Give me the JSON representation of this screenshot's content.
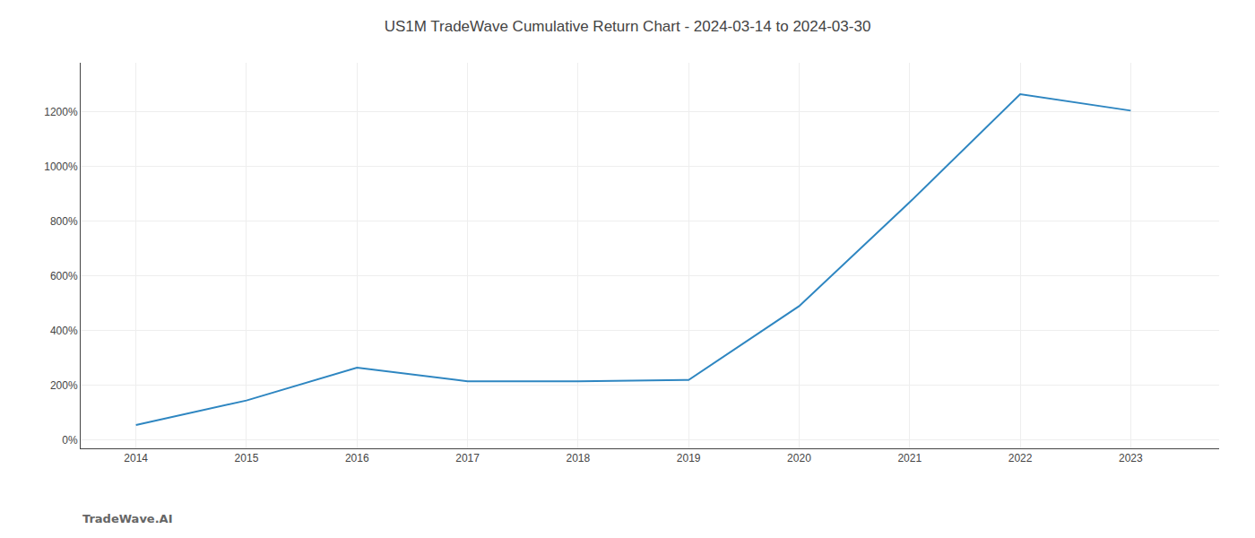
{
  "chart_data": {
    "type": "line",
    "title": "US1M TradeWave Cumulative Return Chart - 2024-03-14 to 2024-03-30",
    "annotations": [
      "TradeWave.AI"
    ],
    "x": [
      2014,
      2015,
      2016,
      2017,
      2018,
      2019,
      2020,
      2021,
      2022,
      2023
    ],
    "values": [
      55,
      145,
      265,
      215,
      215,
      220,
      490,
      870,
      1265,
      1205
    ],
    "color": "#2e86c1",
    "xlim": [
      2013.5,
      2023.8
    ],
    "xticks": [
      2014,
      2015,
      2016,
      2017,
      2018,
      2019,
      2020,
      2021,
      2022,
      2023
    ],
    "ylim": [
      -30,
      1380
    ],
    "yticks": [
      {
        "value": 0,
        "label": "0%"
      },
      {
        "value": 200,
        "label": "200%"
      },
      {
        "value": 400,
        "label": "400%"
      },
      {
        "value": 600,
        "label": "600%"
      },
      {
        "value": 800,
        "label": "800%"
      },
      {
        "value": 1000,
        "label": "1000%"
      },
      {
        "value": 1200,
        "label": "1200%"
      }
    ],
    "grid": true
  }
}
